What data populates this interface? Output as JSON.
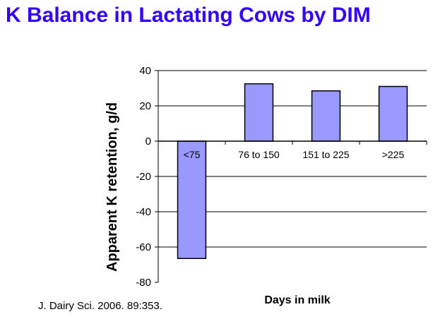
{
  "title": "K Balance in Lactating Cows by DIM",
  "citation": "J. Dairy Sci. 2006. 89:353.",
  "colors": {
    "title": "#3300ff",
    "bar_fill": "#9999ff",
    "bar_stroke": "#000000"
  },
  "chart_data": {
    "type": "bar",
    "title": "",
    "categories": [
      "<75",
      "76 to 150",
      "151 to 225",
      ">225"
    ],
    "values": [
      -66.5,
      32.5,
      28.5,
      31
    ],
    "xlabel": "Days in milk",
    "ylabel": "Apparent K retention, g/d",
    "ylim": [
      -80,
      40
    ],
    "yticks": [
      40,
      20,
      0,
      -20,
      -40,
      -60,
      -80
    ],
    "grid": true,
    "legend": "none",
    "category_label_position": "below zero line"
  }
}
